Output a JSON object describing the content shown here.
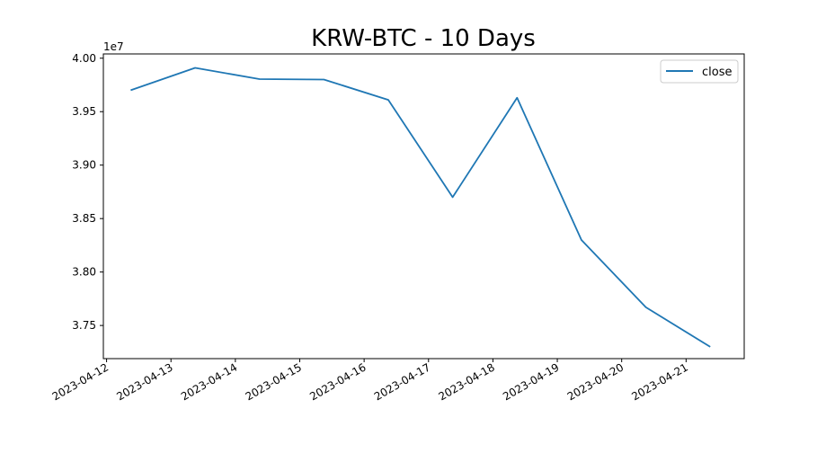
{
  "chart_data": {
    "type": "line",
    "title": "KRW-BTC - 10 Days",
    "xlabel": "",
    "ylabel": "",
    "y_offset_label": "1e7",
    "ylim": [
      37190000,
      40040000
    ],
    "xlim": [
      "2023-04-11 22:48",
      "2023-04-21 21:40"
    ],
    "grid": false,
    "legend_position": "top-right",
    "line_color": "#1f77b4",
    "x_ticks": [
      "2023-04-12",
      "2023-04-13",
      "2023-04-14",
      "2023-04-15",
      "2023-04-16",
      "2023-04-17",
      "2023-04-18",
      "2023-04-19",
      "2023-04-20",
      "2023-04-21"
    ],
    "y_ticks": [
      "3.75",
      "3.80",
      "3.85",
      "3.90",
      "3.95",
      "4.00"
    ],
    "y_tick_values": [
      37500000,
      38000000,
      38500000,
      39000000,
      39500000,
      40000000
    ],
    "series": [
      {
        "name": "close",
        "x": [
          "2023-04-12 09:00",
          "2023-04-13 09:00",
          "2023-04-14 09:00",
          "2023-04-15 09:00",
          "2023-04-16 09:00",
          "2023-04-17 09:00",
          "2023-04-18 09:00",
          "2023-04-19 09:00",
          "2023-04-20 09:00",
          "2023-04-21 09:00"
        ],
        "values": [
          39700000,
          39910000,
          39805000,
          39800000,
          39610000,
          38700000,
          39630000,
          38300000,
          37670000,
          37300000
        ]
      }
    ]
  }
}
